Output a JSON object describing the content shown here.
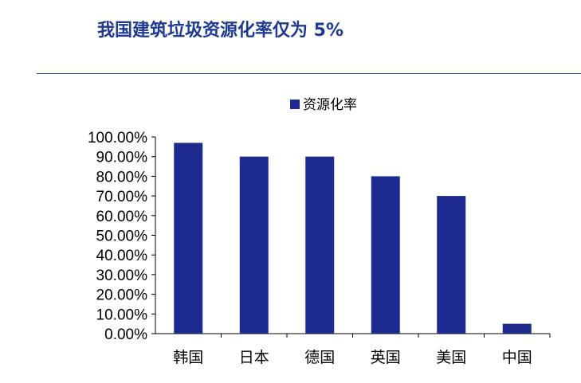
{
  "page": {
    "title": "我国建筑垃圾资源化率仅为 5%"
  },
  "chart_data": {
    "type": "bar",
    "categories": [
      "韩国",
      "日本",
      "德国",
      "英国",
      "美国",
      "中国"
    ],
    "series": [
      {
        "name": "资源化率",
        "values": [
          0.97,
          0.9,
          0.9,
          0.8,
          0.7,
          0.05
        ]
      }
    ],
    "ylim": [
      0,
      1.0
    ],
    "yticks": [
      "0.00%",
      "10.00%",
      "20.00%",
      "30.00%",
      "40.00%",
      "50.00%",
      "60.00%",
      "70.00%",
      "80.00%",
      "90.00%",
      "100.00%"
    ],
    "legend_position": "top-center",
    "grid": false,
    "bar_color": "#1b2a8c"
  }
}
